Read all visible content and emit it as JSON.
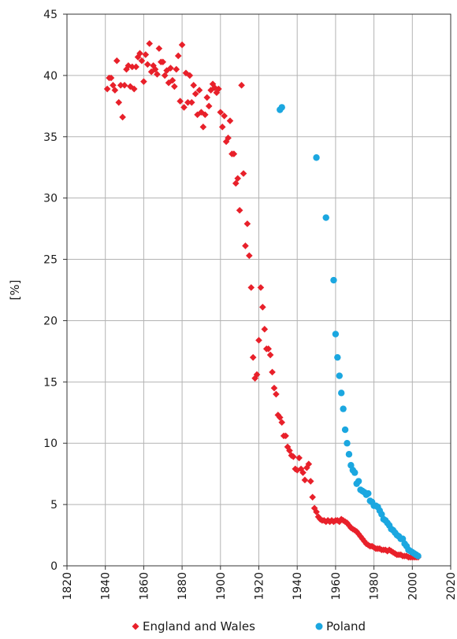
{
  "chart_data": {
    "type": "scatter",
    "xlabel": "",
    "ylabel": "[%]",
    "xlim": [
      1820,
      2020
    ],
    "ylim": [
      0,
      45
    ],
    "x_ticks": [
      "1820",
      "1840",
      "1860",
      "1880",
      "1900",
      "1920",
      "1940",
      "1960",
      "1980",
      "2000",
      "2020"
    ],
    "y_ticks": [
      "0",
      "5",
      "10",
      "15",
      "20",
      "25",
      "30",
      "35",
      "40",
      "45"
    ],
    "grid": true,
    "legend_position": "bottom",
    "series": [
      {
        "name": "England and Wales",
        "marker": "diamond",
        "color": "#e8202a",
        "points": [
          [
            1841,
            38.9
          ],
          [
            1842,
            39.8
          ],
          [
            1843,
            39.8
          ],
          [
            1844,
            39.2
          ],
          [
            1845,
            38.8
          ],
          [
            1846,
            41.2
          ],
          [
            1847,
            37.8
          ],
          [
            1848,
            39.2
          ],
          [
            1849,
            36.6
          ],
          [
            1850,
            39.2
          ],
          [
            1851,
            40.5
          ],
          [
            1852,
            40.8
          ],
          [
            1853,
            39.1
          ],
          [
            1854,
            40.7
          ],
          [
            1855,
            38.9
          ],
          [
            1856,
            40.7
          ],
          [
            1857,
            41.5
          ],
          [
            1858,
            41.8
          ],
          [
            1859,
            41.2
          ],
          [
            1860,
            39.5
          ],
          [
            1861,
            41.7
          ],
          [
            1862,
            40.9
          ],
          [
            1863,
            42.6
          ],
          [
            1864,
            40.3
          ],
          [
            1865,
            40.8
          ],
          [
            1866,
            40.5
          ],
          [
            1867,
            40.1
          ],
          [
            1868,
            42.2
          ],
          [
            1869,
            41.1
          ],
          [
            1870,
            41.1
          ],
          [
            1871,
            40.0
          ],
          [
            1872,
            40.4
          ],
          [
            1873,
            39.4
          ],
          [
            1874,
            40.6
          ],
          [
            1875,
            39.6
          ],
          [
            1876,
            39.1
          ],
          [
            1877,
            40.5
          ],
          [
            1878,
            41.6
          ],
          [
            1879,
            37.9
          ],
          [
            1880,
            42.5
          ],
          [
            1881,
            37.4
          ],
          [
            1882,
            40.2
          ],
          [
            1883,
            37.8
          ],
          [
            1884,
            40.0
          ],
          [
            1885,
            37.8
          ],
          [
            1886,
            39.2
          ],
          [
            1887,
            38.5
          ],
          [
            1888,
            36.8
          ],
          [
            1889,
            38.8
          ],
          [
            1890,
            37.0
          ],
          [
            1891,
            35.8
          ],
          [
            1892,
            36.8
          ],
          [
            1893,
            38.2
          ],
          [
            1894,
            37.5
          ],
          [
            1895,
            38.8
          ],
          [
            1896,
            39.3
          ],
          [
            1897,
            39.0
          ],
          [
            1898,
            38.6
          ],
          [
            1899,
            38.9
          ],
          [
            1900,
            37.0
          ],
          [
            1901,
            35.8
          ],
          [
            1902,
            36.7
          ],
          [
            1903,
            34.6
          ],
          [
            1904,
            34.9
          ],
          [
            1905,
            36.3
          ],
          [
            1906,
            33.6
          ],
          [
            1907,
            33.6
          ],
          [
            1908,
            31.2
          ],
          [
            1909,
            31.6
          ],
          [
            1910,
            29.0
          ],
          [
            1911,
            39.2
          ],
          [
            1912,
            32.0
          ],
          [
            1913,
            26.1
          ],
          [
            1914,
            27.9
          ],
          [
            1915,
            25.3
          ],
          [
            1916,
            22.7
          ],
          [
            1917,
            17.0
          ],
          [
            1918,
            15.3
          ],
          [
            1919,
            15.6
          ],
          [
            1920,
            18.4
          ],
          [
            1921,
            22.7
          ],
          [
            1922,
            21.1
          ],
          [
            1923,
            19.3
          ],
          [
            1924,
            17.7
          ],
          [
            1925,
            17.7
          ],
          [
            1926,
            17.2
          ],
          [
            1927,
            15.8
          ],
          [
            1928,
            14.5
          ],
          [
            1929,
            14.0
          ],
          [
            1930,
            12.3
          ],
          [
            1931,
            12.1
          ],
          [
            1932,
            11.7
          ],
          [
            1933,
            10.6
          ],
          [
            1934,
            10.6
          ],
          [
            1935,
            9.7
          ],
          [
            1936,
            9.4
          ],
          [
            1937,
            9.0
          ],
          [
            1938,
            8.9
          ],
          [
            1939,
            7.9
          ],
          [
            1940,
            7.8
          ],
          [
            1941,
            8.8
          ],
          [
            1942,
            7.9
          ],
          [
            1943,
            7.6
          ],
          [
            1944,
            7.0
          ],
          [
            1945,
            8.0
          ],
          [
            1946,
            8.3
          ],
          [
            1947,
            6.9
          ],
          [
            1948,
            5.6
          ],
          [
            1949,
            4.7
          ],
          [
            1950,
            4.4
          ],
          [
            1951,
            4.0
          ],
          [
            1952,
            3.8
          ],
          [
            1953,
            3.7
          ],
          [
            1954,
            3.7
          ],
          [
            1955,
            3.6
          ],
          [
            1956,
            3.7
          ],
          [
            1957,
            3.6
          ],
          [
            1958,
            3.7
          ],
          [
            1959,
            3.6
          ],
          [
            1960,
            3.7
          ],
          [
            1961,
            3.7
          ],
          [
            1962,
            3.6
          ],
          [
            1963,
            3.8
          ],
          [
            1964,
            3.7
          ],
          [
            1965,
            3.6
          ],
          [
            1966,
            3.5
          ],
          [
            1967,
            3.3
          ],
          [
            1968,
            3.1
          ],
          [
            1969,
            3.0
          ],
          [
            1970,
            2.9
          ],
          [
            1971,
            2.8
          ],
          [
            1972,
            2.6
          ],
          [
            1973,
            2.4
          ],
          [
            1974,
            2.2
          ],
          [
            1975,
            2.0
          ],
          [
            1976,
            1.8
          ],
          [
            1977,
            1.7
          ],
          [
            1978,
            1.6
          ],
          [
            1979,
            1.6
          ],
          [
            1980,
            1.5
          ],
          [
            1981,
            1.4
          ],
          [
            1982,
            1.4
          ],
          [
            1983,
            1.4
          ],
          [
            1984,
            1.3
          ],
          [
            1985,
            1.3
          ],
          [
            1986,
            1.3
          ],
          [
            1987,
            1.2
          ],
          [
            1988,
            1.3
          ],
          [
            1989,
            1.2
          ],
          [
            1990,
            1.1
          ],
          [
            1991,
            1.0
          ],
          [
            1992,
            0.9
          ],
          [
            1993,
            0.9
          ],
          [
            1994,
            0.9
          ],
          [
            1995,
            0.8
          ],
          [
            1996,
            0.8
          ],
          [
            1997,
            0.8
          ],
          [
            1998,
            0.7
          ],
          [
            1999,
            0.7
          ],
          [
            2000,
            0.7
          ],
          [
            2001,
            0.7
          ],
          [
            2002,
            0.7
          ],
          [
            2003,
            0.7
          ]
        ]
      },
      {
        "name": "Poland",
        "marker": "circle",
        "color": "#1ba7e0",
        "points": [
          [
            1931,
            37.2
          ],
          [
            1932,
            37.4
          ],
          [
            1950,
            33.3
          ],
          [
            1955,
            28.4
          ],
          [
            1959,
            23.3
          ],
          [
            1960,
            18.9
          ],
          [
            1961,
            17.0
          ],
          [
            1962,
            15.5
          ],
          [
            1963,
            14.1
          ],
          [
            1964,
            12.8
          ],
          [
            1965,
            11.1
          ],
          [
            1966,
            10.0
          ],
          [
            1967,
            9.1
          ],
          [
            1968,
            8.2
          ],
          [
            1969,
            7.8
          ],
          [
            1970,
            7.6
          ],
          [
            1971,
            6.7
          ],
          [
            1972,
            6.9
          ],
          [
            1973,
            6.2
          ],
          [
            1974,
            6.1
          ],
          [
            1975,
            6.0
          ],
          [
            1976,
            5.8
          ],
          [
            1977,
            5.9
          ],
          [
            1978,
            5.3
          ],
          [
            1979,
            5.2
          ],
          [
            1980,
            4.9
          ],
          [
            1981,
            4.9
          ],
          [
            1982,
            4.8
          ],
          [
            1983,
            4.5
          ],
          [
            1984,
            4.2
          ],
          [
            1985,
            3.8
          ],
          [
            1986,
            3.7
          ],
          [
            1987,
            3.5
          ],
          [
            1988,
            3.3
          ],
          [
            1989,
            3.0
          ],
          [
            1990,
            2.9
          ],
          [
            1991,
            2.7
          ],
          [
            1992,
            2.5
          ],
          [
            1993,
            2.4
          ],
          [
            1994,
            2.2
          ],
          [
            1995,
            2.2
          ],
          [
            1996,
            1.8
          ],
          [
            1997,
            1.6
          ],
          [
            1998,
            1.3
          ],
          [
            1999,
            1.2
          ],
          [
            2000,
            1.1
          ],
          [
            2001,
            1.0
          ],
          [
            2002,
            0.9
          ],
          [
            2003,
            0.8
          ]
        ]
      }
    ]
  }
}
